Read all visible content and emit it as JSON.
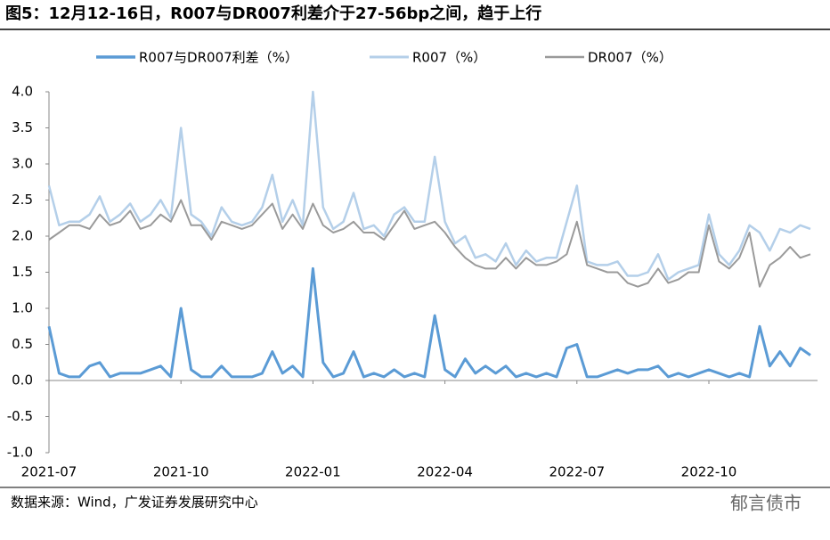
{
  "chart_data": {
    "type": "line",
    "title": "图5：12月12-16日，R007与DR007利差介于27-56bp之间，趋于上行",
    "source": "数据来源：Wind，广发证券发展研究中心",
    "watermark": "郁言债市",
    "categories": [
      "2021-07",
      null,
      null,
      null,
      null,
      null,
      null,
      null,
      null,
      null,
      null,
      null,
      null,
      "2021-10",
      null,
      null,
      null,
      null,
      null,
      null,
      null,
      null,
      null,
      null,
      null,
      null,
      "2022-01",
      null,
      null,
      null,
      null,
      null,
      null,
      null,
      null,
      null,
      null,
      null,
      null,
      "2022-04",
      null,
      null,
      null,
      null,
      null,
      null,
      null,
      null,
      null,
      null,
      null,
      null,
      "2022-07",
      null,
      null,
      null,
      null,
      null,
      null,
      null,
      null,
      null,
      null,
      null,
      null,
      "2022-10",
      null,
      null,
      null,
      null,
      null,
      null,
      null,
      null,
      null,
      null
    ],
    "series": [
      {
        "name": "R007与DR007利差（%）",
        "color": "#5b9bd5",
        "width": 3,
        "values": [
          0.75,
          0.1,
          0.05,
          0.05,
          0.2,
          0.25,
          0.05,
          0.1,
          0.1,
          0.1,
          0.15,
          0.2,
          0.05,
          1.0,
          0.15,
          0.05,
          0.05,
          0.2,
          0.05,
          0.05,
          0.05,
          0.1,
          0.4,
          0.1,
          0.2,
          0.05,
          1.55,
          0.25,
          0.05,
          0.1,
          0.4,
          0.05,
          0.1,
          0.05,
          0.15,
          0.05,
          0.1,
          0.05,
          0.9,
          0.15,
          0.05,
          0.3,
          0.1,
          0.2,
          0.1,
          0.2,
          0.05,
          0.1,
          0.05,
          0.1,
          0.05,
          0.45,
          0.5,
          0.05,
          0.05,
          0.1,
          0.15,
          0.1,
          0.15,
          0.15,
          0.2,
          0.05,
          0.1,
          0.05,
          0.1,
          0.15,
          0.1,
          0.05,
          0.1,
          0.05,
          0.75,
          0.2,
          0.4,
          0.2,
          0.45,
          0.35
        ]
      },
      {
        "name": "R007（%）",
        "color": "#b4cfe9",
        "width": 2.5,
        "values": [
          2.7,
          2.15,
          2.2,
          2.2,
          2.3,
          2.55,
          2.2,
          2.3,
          2.45,
          2.2,
          2.3,
          2.5,
          2.25,
          3.5,
          2.3,
          2.2,
          2.0,
          2.4,
          2.2,
          2.15,
          2.2,
          2.4,
          2.85,
          2.2,
          2.5,
          2.15,
          4.0,
          2.4,
          2.1,
          2.2,
          2.6,
          2.1,
          2.15,
          2.0,
          2.3,
          2.4,
          2.2,
          2.2,
          3.1,
          2.2,
          1.9,
          2.0,
          1.7,
          1.75,
          1.65,
          1.9,
          1.6,
          1.8,
          1.65,
          1.7,
          1.7,
          2.2,
          2.7,
          1.65,
          1.6,
          1.6,
          1.65,
          1.45,
          1.45,
          1.5,
          1.75,
          1.4,
          1.5,
          1.55,
          1.6,
          2.3,
          1.75,
          1.6,
          1.8,
          2.15,
          2.05,
          1.8,
          2.1,
          2.05,
          2.15,
          2.1
        ]
      },
      {
        "name": "DR007（%）",
        "color": "#9a9a9a",
        "width": 2,
        "values": [
          1.95,
          2.05,
          2.15,
          2.15,
          2.1,
          2.3,
          2.15,
          2.2,
          2.35,
          2.1,
          2.15,
          2.3,
          2.2,
          2.5,
          2.15,
          2.15,
          1.95,
          2.2,
          2.15,
          2.1,
          2.15,
          2.3,
          2.45,
          2.1,
          2.3,
          2.1,
          2.45,
          2.15,
          2.05,
          2.1,
          2.2,
          2.05,
          2.05,
          1.95,
          2.15,
          2.35,
          2.1,
          2.15,
          2.2,
          2.05,
          1.85,
          1.7,
          1.6,
          1.55,
          1.55,
          1.7,
          1.55,
          1.7,
          1.6,
          1.6,
          1.65,
          1.75,
          2.2,
          1.6,
          1.55,
          1.5,
          1.5,
          1.35,
          1.3,
          1.35,
          1.55,
          1.35,
          1.4,
          1.5,
          1.5,
          2.15,
          1.65,
          1.55,
          1.7,
          2.05,
          1.3,
          1.6,
          1.7,
          1.85,
          1.7,
          1.75
        ]
      }
    ],
    "ylim": [
      -1,
      4
    ],
    "yticks": [
      {
        "value": -1,
        "label": "-1.0"
      },
      -0.5,
      {
        "value": 0,
        "label": "0.0"
      },
      0.5,
      {
        "value": 1,
        "label": "1.0"
      },
      1.5,
      {
        "value": 2,
        "label": "2.0"
      },
      2.5,
      {
        "value": 3,
        "label": "3.0"
      },
      3.5,
      {
        "value": 4,
        "label": "4.0"
      }
    ],
    "legend": "top"
  }
}
